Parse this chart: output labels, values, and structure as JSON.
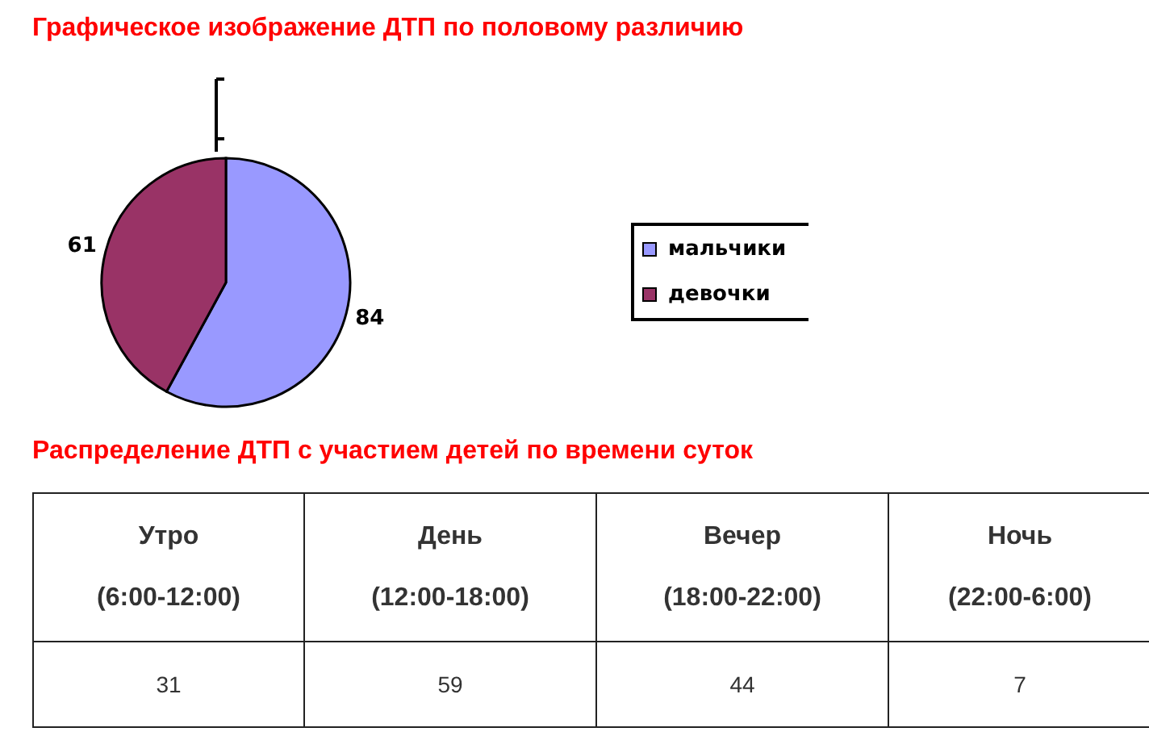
{
  "chart_data": [
    {
      "type": "pie",
      "title": "Графическое изображение ДТП по половому различию",
      "categories": [
        "мальчики",
        "девочки"
      ],
      "values": [
        84,
        61
      ],
      "colors": [
        "#9999ff",
        "#993366"
      ],
      "data_labels": true,
      "legend": "right"
    },
    {
      "type": "other",
      "title": "Распределение ДТП с участием детей по времени суток",
      "categories": [
        "Утро\n(6:00-12:00)",
        "День\n(12:00-18:00)",
        "Вечер\n(18:00-22:00)",
        "Ночь\n(22:00-6:00)"
      ],
      "values": [
        31,
        59,
        44,
        7
      ],
      "data_labels": true
    }
  ]
}
